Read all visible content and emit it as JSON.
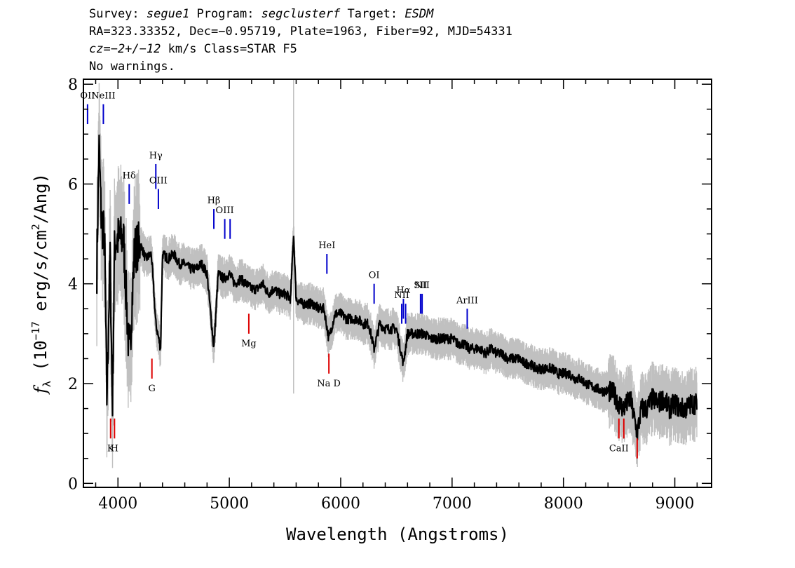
{
  "header": {
    "line1": {
      "survey_label": "Survey: ",
      "survey": "segue1",
      "program_label": " Program: ",
      "program": "segclusterf",
      "target_label": " Target: ",
      "target": "ESDM"
    },
    "line2": "RA=323.33352, Dec=−0.95719, Plate=1963, Fiber=92, MJD=54331",
    "line3": {
      "cz": "cz=−2+/−12",
      "rest": " km/s Class=STAR F5"
    },
    "line4": "No warnings."
  },
  "colors": {
    "flux": "#000000",
    "error": "#c0c0c0",
    "emission": "#0000cc",
    "absorption": "#dd0000"
  },
  "chart_data": {
    "type": "line",
    "xlabel": "Wavelength (Angstroms)",
    "ylabel": "f_λ (10^-17 erg/s/cm^2/Ang)",
    "xlim": [
      3690,
      9330
    ],
    "ylim": [
      -0.08,
      8.1
    ],
    "xticks": [
      4000,
      5000,
      6000,
      7000,
      8000,
      9000
    ],
    "yticks": [
      0,
      2,
      4,
      6,
      8
    ],
    "grid": false,
    "series": [
      {
        "name": "flux",
        "x": [
          3810,
          3830,
          3850,
          3880,
          3900,
          3930,
          3950,
          3970,
          4000,
          4050,
          4101,
          4150,
          4200,
          4250,
          4300,
          4340,
          4383,
          4400,
          4450,
          4500,
          4550,
          4600,
          4650,
          4700,
          4750,
          4800,
          4861,
          4900,
          4950,
          5000,
          5050,
          5100,
          5150,
          5200,
          5250,
          5300,
          5350,
          5400,
          5450,
          5500,
          5550,
          5577,
          5600,
          5650,
          5700,
          5750,
          5800,
          5850,
          5893,
          5950,
          6000,
          6050,
          6100,
          6150,
          6200,
          6250,
          6300,
          6350,
          6400,
          6450,
          6500,
          6563,
          6600,
          6650,
          6700,
          6750,
          6800,
          6850,
          6900,
          6950,
          7000,
          7050,
          7100,
          7150,
          7200,
          7250,
          7300,
          7350,
          7400,
          7450,
          7500,
          7550,
          7600,
          7650,
          7700,
          7750,
          7800,
          7850,
          7900,
          7950,
          8000,
          8050,
          8100,
          8150,
          8200,
          8250,
          8300,
          8350,
          8400,
          8450,
          8498,
          8542,
          8600,
          8662,
          8700,
          8750,
          8800,
          8850,
          8900,
          8950,
          9000,
          9050,
          9100,
          9150,
          9200
        ],
        "y": [
          4.3,
          6.8,
          5.3,
          4.9,
          1.7,
          4.6,
          1.5,
          4.8,
          4.9,
          4.9,
          2.5,
          4.7,
          4.8,
          4.5,
          4.6,
          3.2,
          2.7,
          4.6,
          4.5,
          4.6,
          4.4,
          4.4,
          4.3,
          4.3,
          4.4,
          4.2,
          2.7,
          4.2,
          4.1,
          4.2,
          4.0,
          4.1,
          4.0,
          3.9,
          3.9,
          4.0,
          3.8,
          3.9,
          3.8,
          3.8,
          3.7,
          5.0,
          3.7,
          3.6,
          3.6,
          3.6,
          3.5,
          3.5,
          2.9,
          3.4,
          3.4,
          3.3,
          3.3,
          3.3,
          3.2,
          3.2,
          2.7,
          3.2,
          3.1,
          3.1,
          3.1,
          2.4,
          3.0,
          3.0,
          3.0,
          3.0,
          2.9,
          2.9,
          2.9,
          2.9,
          2.9,
          2.8,
          2.8,
          2.7,
          2.7,
          2.7,
          2.6,
          2.7,
          2.6,
          2.6,
          2.5,
          2.5,
          2.5,
          2.4,
          2.4,
          2.3,
          2.3,
          2.3,
          2.3,
          2.2,
          2.2,
          2.2,
          2.1,
          2.1,
          2.0,
          1.95,
          1.9,
          1.85,
          1.85,
          1.8,
          1.6,
          1.5,
          1.7,
          1.0,
          1.5,
          1.5,
          1.7,
          1.6,
          1.7,
          1.5,
          1.6,
          1.5,
          1.5,
          1.6,
          1.6
        ]
      },
      {
        "name": "error",
        "values_note": ""
      }
    ],
    "emission_lines": [
      {
        "label": "OII",
        "wave": 3727,
        "y1": 7.6,
        "y2": 7.2
      },
      {
        "label": "NeIII",
        "wave": 3869,
        "y1": 7.6,
        "y2": 7.2
      },
      {
        "label": "Hδ",
        "wave": 4101,
        "y1": 6.0,
        "y2": 5.6
      },
      {
        "label": "Hγ",
        "wave": 4340,
        "y1": 6.4,
        "y2": 5.9
      },
      {
        "label": "OIII",
        "wave": 4363,
        "y1": 5.9,
        "y2": 5.5
      },
      {
        "label": "Hβ",
        "wave": 4861,
        "y1": 5.5,
        "y2": 5.1
      },
      {
        "label": "OIII",
        "wave": 4959,
        "y1": 5.3,
        "y2": 4.9
      },
      {
        "label": "",
        "wave": 5007,
        "y1": 5.3,
        "y2": 4.9
      },
      {
        "label": "HeI",
        "wave": 5876,
        "y1": 4.6,
        "y2": 4.2
      },
      {
        "label": "OI",
        "wave": 6300,
        "y1": 4.0,
        "y2": 3.6
      },
      {
        "label": "NII",
        "wave": 6548,
        "y1": 3.6,
        "y2": 3.2
      },
      {
        "label": "Hα",
        "wave": 6563,
        "y1": 3.7,
        "y2": 3.3
      },
      {
        "label": "",
        "wave": 6583,
        "y1": 3.6,
        "y2": 3.2
      },
      {
        "label": "SII",
        "wave": 6717,
        "y1": 3.8,
        "y2": 3.4
      },
      {
        "label": "NII",
        "wave": 6731,
        "y1": 3.8,
        "y2": 3.4
      },
      {
        "label": "ArIII",
        "wave": 7136,
        "y1": 3.5,
        "y2": 3.1
      }
    ],
    "absorption_lines": [
      {
        "label": "K",
        "wave": 3934,
        "y1": 1.3,
        "y2": 0.9
      },
      {
        "label": "H",
        "wave": 3969,
        "y1": 1.3,
        "y2": 0.9
      },
      {
        "label": "G",
        "wave": 4305,
        "y1": 2.5,
        "y2": 2.1
      },
      {
        "label": "Mg",
        "wave": 5175,
        "y1": 3.4,
        "y2": 3.0
      },
      {
        "label": "Na D",
        "wave": 5894,
        "y1": 2.6,
        "y2": 2.2
      },
      {
        "label": "CaII",
        "wave": 8498,
        "y1": 1.3,
        "y2": 0.9
      },
      {
        "label": "",
        "wave": 8542,
        "y1": 1.3,
        "y2": 0.9
      },
      {
        "label": "",
        "wave": 8662,
        "y1": 0.9,
        "y2": 0.5
      }
    ]
  }
}
